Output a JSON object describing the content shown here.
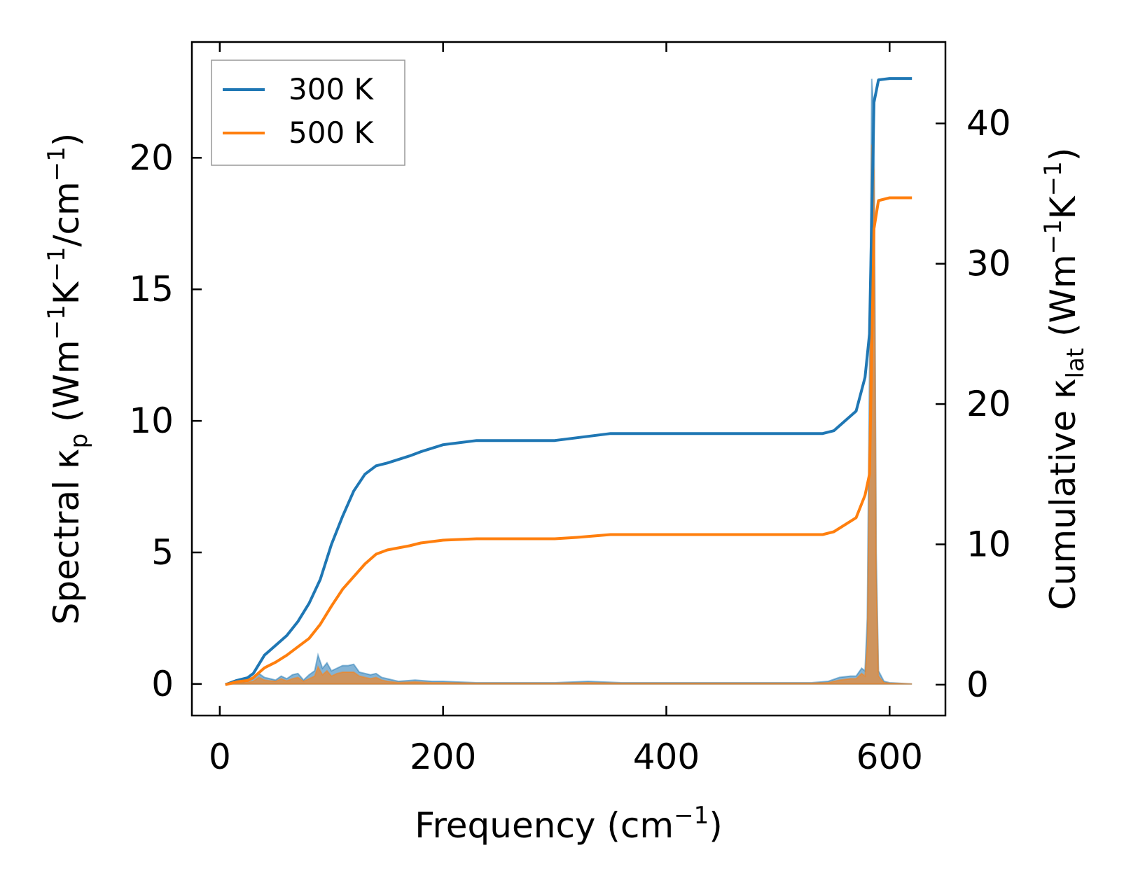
{
  "chart_data": {
    "type": "line",
    "xlabel": "Frequency (cm",
    "xlabel_sup": "−1",
    "xlabel_end": ")",
    "ylabel_left": {
      "text1": "Spectral κ",
      "sub": "p",
      "text2": " (Wm",
      "sup1": "−1",
      "text3": "K",
      "sup2": "−1",
      "text4": "/cm",
      "sup3": "−1",
      "text5": ")"
    },
    "ylabel_right": {
      "text1": "Cumulative κ",
      "sub": "lat",
      "text2": " (Wm",
      "sup1": "−1",
      "text3": "K",
      "sup2": "−1",
      "text4": ")"
    },
    "xlim": [
      -25,
      650
    ],
    "ylim_left": [
      -1.2,
      24.4
    ],
    "ylim_right": [
      -2.2,
      45.8
    ],
    "x_ticks": [
      0,
      200,
      400,
      600
    ],
    "x_tick_labels": [
      "0",
      "200",
      "400",
      "600"
    ],
    "y_left_ticks": [
      0,
      5,
      10,
      15,
      20
    ],
    "y_left_tick_labels": [
      "0",
      "5",
      "10",
      "15",
      "20"
    ],
    "y_right_ticks": [
      0,
      10,
      20,
      30,
      40
    ],
    "y_right_tick_labels": [
      "0",
      "10",
      "20",
      "30",
      "40"
    ],
    "legend": {
      "position": "top-left",
      "entries": [
        {
          "label": "300 K",
          "color": "#1f77b4"
        },
        {
          "label": "500 K",
          "color": "#ff7f0e"
        }
      ]
    },
    "cumulative_series": [
      {
        "name": "300 K",
        "color": "#1f77b4",
        "axis": "right",
        "x": [
          5,
          15,
          25,
          30,
          40,
          50,
          60,
          70,
          80,
          90,
          100,
          110,
          120,
          130,
          140,
          150,
          170,
          180,
          200,
          230,
          300,
          320,
          350,
          540,
          550,
          570,
          578,
          582,
          586,
          590,
          600,
          620
        ],
        "y": [
          0,
          0.3,
          0.5,
          0.8,
          2.1,
          2.8,
          3.5,
          4.5,
          5.8,
          7.5,
          10.0,
          12.0,
          13.8,
          15.0,
          15.6,
          15.8,
          16.3,
          16.6,
          17.1,
          17.4,
          17.4,
          17.6,
          17.9,
          17.9,
          18.1,
          19.5,
          21.9,
          25.0,
          41.5,
          43.1,
          43.2,
          43.2
        ]
      },
      {
        "name": "500 K",
        "color": "#ff7f0e",
        "axis": "right",
        "x": [
          5,
          15,
          25,
          30,
          40,
          50,
          60,
          70,
          80,
          90,
          100,
          110,
          120,
          130,
          140,
          150,
          170,
          180,
          200,
          230,
          300,
          320,
          350,
          540,
          550,
          570,
          578,
          582,
          586,
          590,
          600,
          620
        ],
        "y": [
          0,
          0.2,
          0.3,
          0.5,
          1.2,
          1.6,
          2.1,
          2.7,
          3.3,
          4.3,
          5.6,
          6.8,
          7.7,
          8.6,
          9.3,
          9.6,
          9.9,
          10.1,
          10.3,
          10.4,
          10.4,
          10.5,
          10.7,
          10.7,
          10.9,
          11.9,
          13.5,
          15.0,
          32.5,
          34.5,
          34.7,
          34.7
        ]
      }
    ],
    "spectral_series": [
      {
        "name": "300 K",
        "color": "#1f77b4",
        "axis": "left",
        "x": [
          5,
          20,
          30,
          35,
          40,
          45,
          50,
          55,
          60,
          65,
          70,
          75,
          80,
          85,
          88,
          92,
          96,
          100,
          105,
          110,
          115,
          120,
          125,
          130,
          135,
          140,
          145,
          150,
          160,
          175,
          190,
          200,
          230,
          300,
          330,
          360,
          530,
          545,
          555,
          565,
          570,
          575,
          578,
          580,
          582,
          584,
          586,
          588,
          590,
          595,
          600,
          620
        ],
        "y": [
          0,
          0.05,
          0.2,
          0.4,
          0.25,
          0.2,
          0.15,
          0.3,
          0.2,
          0.35,
          0.4,
          0.15,
          0.35,
          0.5,
          1.1,
          0.6,
          0.8,
          0.5,
          0.6,
          0.7,
          0.7,
          0.75,
          0.45,
          0.4,
          0.35,
          0.4,
          0.25,
          0.2,
          0.1,
          0.15,
          0.1,
          0.1,
          0.05,
          0.05,
          0.1,
          0.05,
          0.05,
          0.1,
          0.25,
          0.3,
          0.3,
          0.6,
          0.5,
          2.5,
          12.0,
          23.0,
          21.5,
          5.0,
          0.5,
          0.1,
          0.05,
          0.0
        ]
      },
      {
        "name": "500 K",
        "color": "#ff7f0e",
        "axis": "left",
        "x": [
          5,
          20,
          30,
          35,
          40,
          45,
          50,
          55,
          60,
          65,
          70,
          75,
          80,
          85,
          88,
          92,
          96,
          100,
          105,
          110,
          115,
          120,
          125,
          130,
          135,
          140,
          145,
          150,
          160,
          175,
          190,
          200,
          230,
          300,
          330,
          360,
          530,
          545,
          555,
          565,
          570,
          575,
          578,
          580,
          582,
          584,
          586,
          588,
          590,
          595,
          600,
          620
        ],
        "y": [
          0,
          0.03,
          0.1,
          0.25,
          0.15,
          0.12,
          0.1,
          0.2,
          0.12,
          0.2,
          0.25,
          0.1,
          0.2,
          0.3,
          0.65,
          0.35,
          0.5,
          0.3,
          0.4,
          0.45,
          0.45,
          0.45,
          0.3,
          0.25,
          0.2,
          0.25,
          0.15,
          0.1,
          0.06,
          0.08,
          0.05,
          0.05,
          0.03,
          0.03,
          0.05,
          0.03,
          0.03,
          0.05,
          0.15,
          0.2,
          0.2,
          0.4,
          0.3,
          1.5,
          9.0,
          20.5,
          19.5,
          4.0,
          0.3,
          0.05,
          0.03,
          0.0
        ]
      }
    ]
  }
}
